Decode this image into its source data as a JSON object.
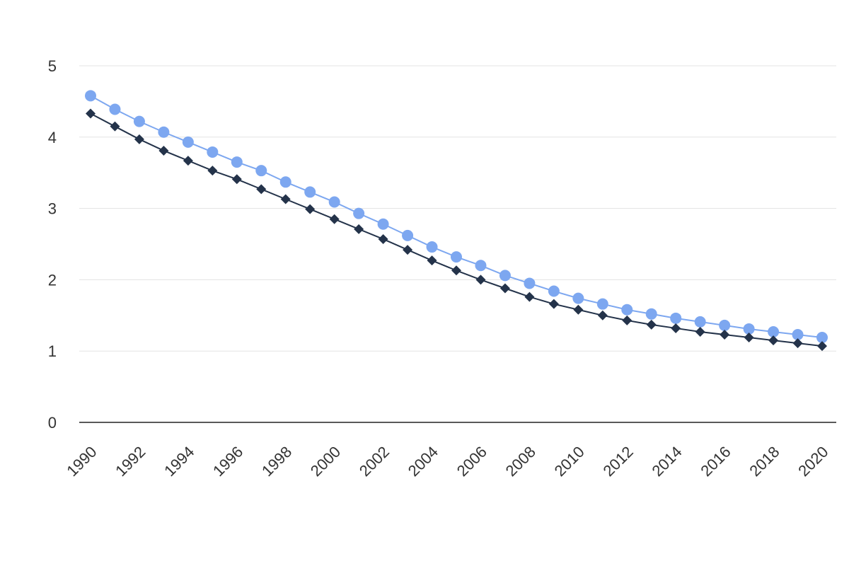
{
  "chart_data": {
    "type": "line",
    "title": "",
    "xlabel": "",
    "ylabel": "",
    "x": [
      1990,
      1991,
      1992,
      1993,
      1994,
      1995,
      1996,
      1997,
      1998,
      1999,
      2000,
      2001,
      2002,
      2003,
      2004,
      2005,
      2006,
      2007,
      2008,
      2009,
      2010,
      2011,
      2012,
      2013,
      2014,
      2015,
      2016,
      2017,
      2018,
      2019,
      2020
    ],
    "x_tick_labels": [
      "1990",
      "1992",
      "1994",
      "1996",
      "1998",
      "2000",
      "2002",
      "2004",
      "2006",
      "2008",
      "2010",
      "2012",
      "2014",
      "2016",
      "2018",
      "2020"
    ],
    "y_tick_labels": [
      "0",
      "1",
      "2",
      "3",
      "4",
      "5"
    ],
    "ylim": [
      0,
      5
    ],
    "grid": true,
    "legend": "none",
    "series": [
      {
        "color": "#7da7f0",
        "marker": "circle",
        "values": [
          4.58,
          4.39,
          4.22,
          4.07,
          3.93,
          3.79,
          3.65,
          3.53,
          3.37,
          3.23,
          3.09,
          2.93,
          2.78,
          2.62,
          2.46,
          2.32,
          2.2,
          2.06,
          1.95,
          1.84,
          1.74,
          1.66,
          1.58,
          1.52,
          1.46,
          1.41,
          1.36,
          1.31,
          1.27,
          1.23,
          1.19
        ]
      },
      {
        "color": "#24334a",
        "marker": "diamond",
        "values": [
          4.33,
          4.15,
          3.97,
          3.81,
          3.67,
          3.53,
          3.41,
          3.27,
          3.13,
          2.99,
          2.85,
          2.71,
          2.57,
          2.42,
          2.27,
          2.13,
          2.0,
          1.88,
          1.76,
          1.66,
          1.58,
          1.5,
          1.43,
          1.37,
          1.32,
          1.27,
          1.23,
          1.19,
          1.15,
          1.11,
          1.07
        ]
      }
    ]
  }
}
